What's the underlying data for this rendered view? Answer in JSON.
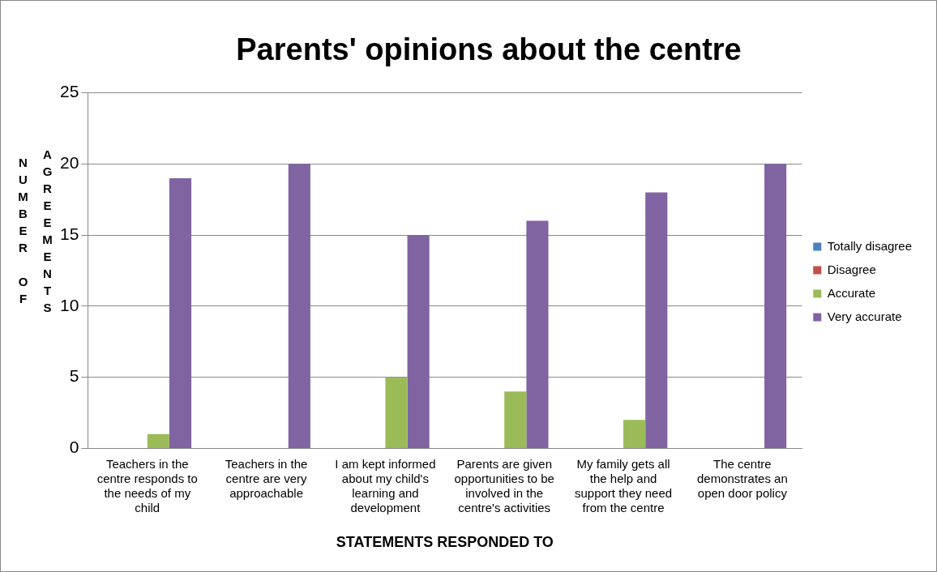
{
  "chart_data": {
    "type": "bar",
    "title": "Parents' opinions about the centre",
    "xlabel": "STATEMENTS RESPONDED TO",
    "ylabel": "NUMBER OF AGREEMENTS",
    "categories": [
      "Teachers in the centre responds to the needs of my child",
      "Teachers in the centre are very approachable",
      "I am kept informed about my child's learning and development",
      "Parents are given opportunities to be involved in the centre's activities",
      "My family gets all the help and support they need from the centre",
      "The centre demonstrates an open door policy"
    ],
    "series": [
      {
        "name": "Totally disagree",
        "color": "#4f81bd",
        "values": [
          0,
          0,
          0,
          0,
          0,
          0
        ]
      },
      {
        "name": "Disagree",
        "color": "#c0504d",
        "values": [
          0,
          0,
          0,
          0,
          0,
          0
        ]
      },
      {
        "name": "Accurate",
        "color": "#9bbb59",
        "values": [
          1,
          0,
          5,
          4,
          2,
          0
        ]
      },
      {
        "name": "Very accurate",
        "color": "#8064a2",
        "values": [
          19,
          20,
          15,
          16,
          18,
          20
        ]
      }
    ],
    "ylim": [
      0,
      25
    ],
    "yticks": [
      0,
      5,
      10,
      15,
      20,
      25
    ],
    "grid": "y",
    "legend": "right"
  }
}
